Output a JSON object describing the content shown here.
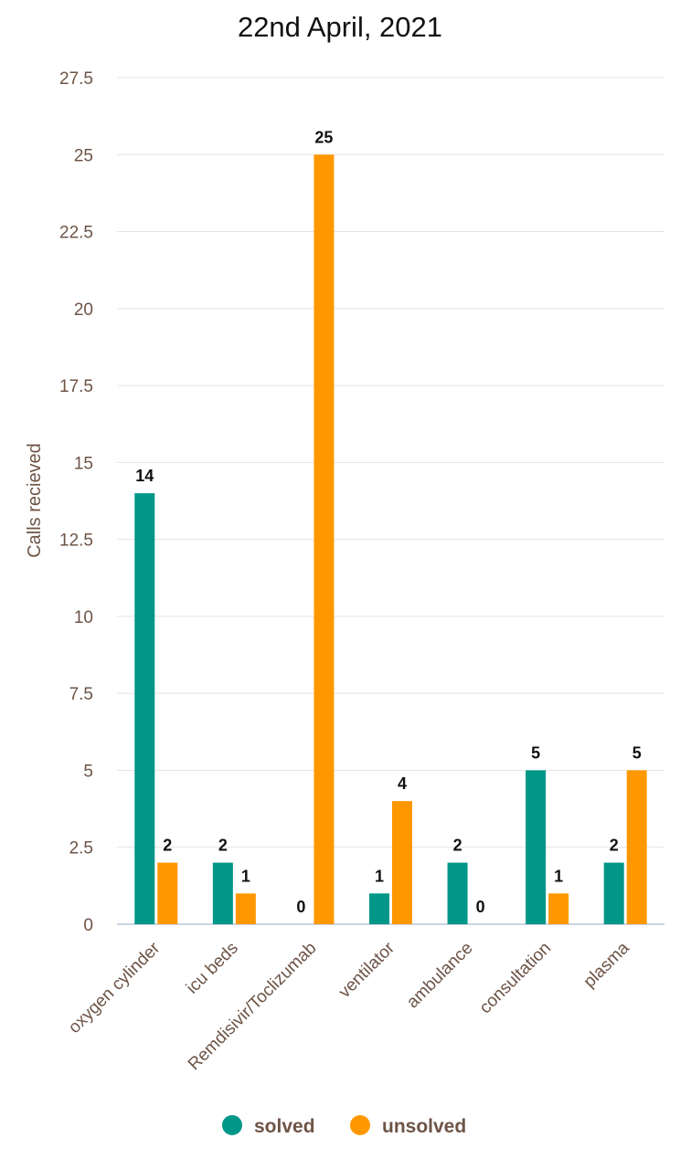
{
  "chart_data": {
    "type": "bar",
    "title": "22nd April, 2021",
    "xlabel": "",
    "ylabel": "Calls recieved",
    "ylim": [
      0,
      27.5
    ],
    "yticks": [
      "0",
      "2.5",
      "5",
      "7.5",
      "10",
      "12.5",
      "15",
      "17.5",
      "20",
      "22.5",
      "25",
      "27.5"
    ],
    "categories": [
      "oxygen cylinder",
      "icu beds",
      "Remdisivir/Toclizumab",
      "ventilator",
      "ambulance",
      "consultation",
      "plasma"
    ],
    "series": [
      {
        "name": "solved",
        "color": "#009688",
        "values": [
          14,
          2,
          0,
          1,
          2,
          5,
          2
        ]
      },
      {
        "name": "unsolved",
        "color": "#ff9800",
        "values": [
          2,
          1,
          25,
          4,
          0,
          1,
          5
        ]
      }
    ],
    "grid": true,
    "legend_position": "bottom-center"
  }
}
